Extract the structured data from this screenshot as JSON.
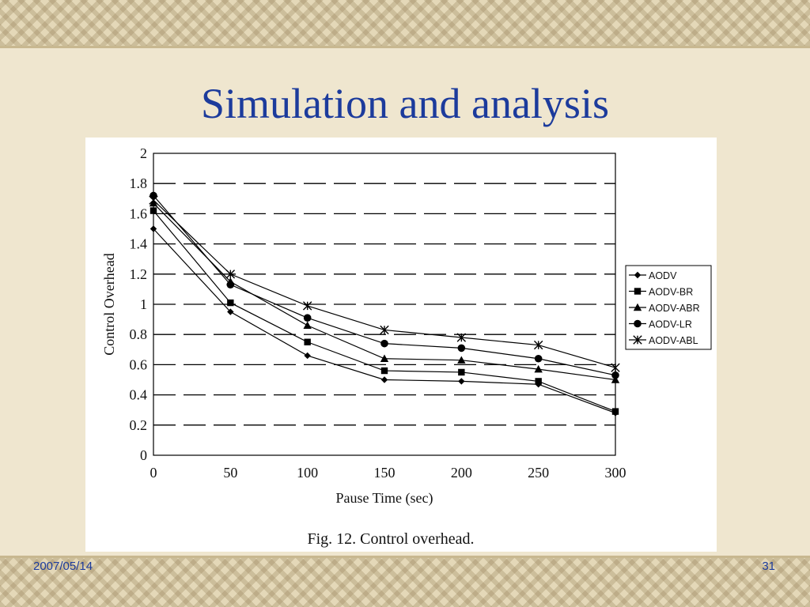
{
  "slide": {
    "title": "Simulation and analysis",
    "date": "2007/05/14",
    "page_number": "31"
  },
  "chart_data": {
    "type": "line",
    "caption": "Fig. 12. Control overhead.",
    "xlabel": "Pause Time (sec)",
    "ylabel": "Control Overhead",
    "x": [
      0,
      50,
      100,
      150,
      200,
      250,
      300
    ],
    "xlim": [
      0,
      300
    ],
    "ylim": [
      0,
      2
    ],
    "xticks": [
      "0",
      "50",
      "100",
      "150",
      "200",
      "250",
      "300"
    ],
    "yticks": [
      "0",
      "0.2",
      "0.4",
      "0.6",
      "0.8",
      "1",
      "1.2",
      "1.4",
      "1.6",
      "1.8",
      "2"
    ],
    "grid": "horizontal dashed",
    "legend_position": "right",
    "series": [
      {
        "name": "AODV",
        "marker": "diamond",
        "values": [
          1.5,
          0.95,
          0.66,
          0.5,
          0.49,
          0.47,
          0.28
        ]
      },
      {
        "name": "AODV-BR",
        "marker": "square",
        "values": [
          1.62,
          1.01,
          0.75,
          0.56,
          0.55,
          0.49,
          0.29
        ]
      },
      {
        "name": "AODV-ABR",
        "marker": "triangle",
        "values": [
          1.67,
          1.15,
          0.86,
          0.64,
          0.63,
          0.57,
          0.5
        ]
      },
      {
        "name": "AODV-LR",
        "marker": "circle",
        "values": [
          1.72,
          1.13,
          0.91,
          0.74,
          0.71,
          0.64,
          0.53
        ]
      },
      {
        "name": "AODV-ABL",
        "marker": "asterisk",
        "values": [
          1.69,
          1.2,
          0.99,
          0.83,
          0.78,
          0.73,
          0.58
        ]
      }
    ]
  }
}
